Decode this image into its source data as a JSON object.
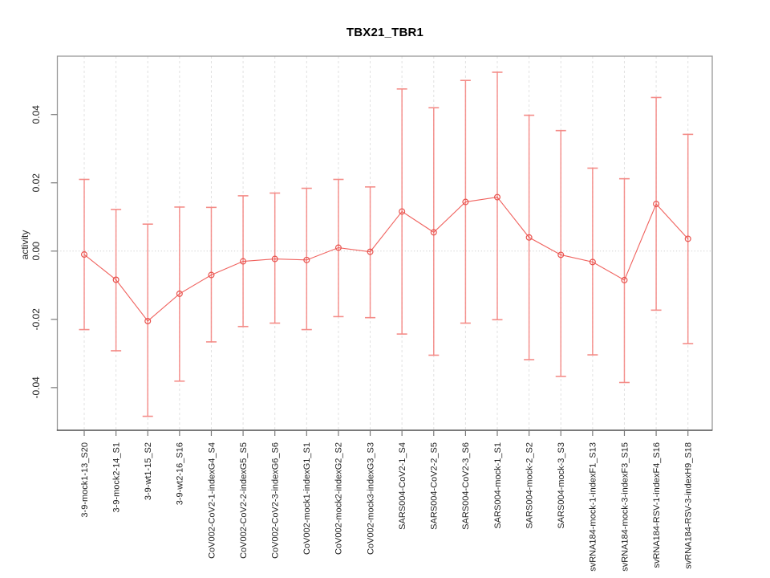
{
  "chart_data": {
    "type": "scatter",
    "title": "TBX21_TBR1",
    "xlabel": "",
    "ylabel": "activity",
    "ylim": [
      -0.0525,
      0.0571
    ],
    "yticks": [
      -0.04,
      -0.02,
      0,
      0.02,
      0.04
    ],
    "ytick_labels": [
      "-0.04",
      "-0.02",
      "0.00",
      "0.02",
      "0.04"
    ],
    "grid": {
      "vertical_dashed_per_category": true,
      "horizontal_zero_line_dotted": true
    },
    "legend": "none",
    "marker": "open-circle",
    "categories": [
      "3-9-mock1-13_S20",
      "3-9-mock2-14_S1",
      "3-9-wt1-15_S2",
      "3-9-wt2-16_S16",
      "CoV002-CoV2-1-indexG4_S4",
      "CoV002-CoV2-2-indexG5_S5",
      "CoV002-CoV2-3-indexG6_S6",
      "CoV002-mock1-indexG1_S1",
      "CoV002-mock2-indexG2_S2",
      "CoV002-mock3-indexG3_S3",
      "SARS004-CoV2-1_S4",
      "SARS004-CoV2-2_S5",
      "SARS004-CoV2-3_S6",
      "SARS004-mock-1_S1",
      "SARS004-mock-2_S2",
      "SARS004-mock-3_S3",
      "svRNA184-mock-1-indexF1_S13",
      "svRNA184-mock-3-indexF3_S15",
      "svRNA184-RSV-1-indexF4_S16",
      "svRNA184-RSV-3-indexH9_S18"
    ],
    "series": [
      {
        "name": "TBX21_TBR1 activity",
        "values": [
          -0.001,
          -0.0084,
          -0.0205,
          -0.0125,
          -0.007,
          -0.003,
          -0.0023,
          -0.0026,
          0.001,
          -0.0002,
          0.0116,
          0.0055,
          0.0144,
          0.0158,
          0.004,
          -0.0011,
          -0.0032,
          -0.0085,
          0.0138,
          0.0036
        ],
        "err_hi": [
          0.021,
          0.0122,
          0.0079,
          0.0129,
          0.0128,
          0.0162,
          0.017,
          0.0184,
          0.021,
          0.0188,
          0.0475,
          0.042,
          0.05,
          0.0524,
          0.0398,
          0.0353,
          0.0243,
          0.0212,
          0.045,
          0.0342
        ],
        "err_lo": [
          -0.023,
          -0.0292,
          -0.0484,
          -0.0381,
          -0.0266,
          -0.0221,
          -0.0211,
          -0.023,
          -0.0192,
          -0.0195,
          -0.0243,
          -0.0305,
          -0.0211,
          -0.0201,
          -0.0318,
          -0.0367,
          -0.0304,
          -0.0385,
          -0.0173,
          -0.0271
        ]
      }
    ],
    "colors": {
      "point": "#e8534e",
      "line": "#ef5a55",
      "error_bar": "#f48783",
      "grid": "#e1e1e1",
      "zero_line": "#cfcfcf",
      "box": "#979797",
      "axis": "#3c3c3c",
      "tick": "#7a7a7a",
      "text": "#1f1f1f"
    }
  }
}
